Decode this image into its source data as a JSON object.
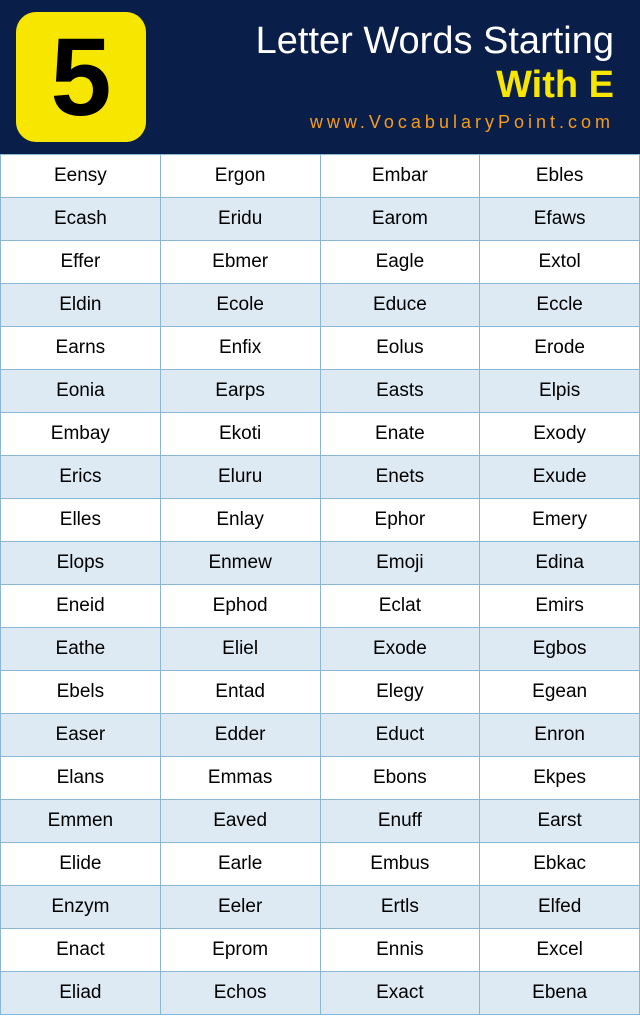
{
  "header": {
    "number": "5",
    "title_line1": "Letter Words Starting",
    "title_line2": "With E",
    "website": "www.VocabularyPoint.com"
  },
  "table": {
    "type": "table",
    "columns": 4,
    "background_color": "#ffffff",
    "alt_row_color": "#dde9f3",
    "border_color": "#8ab6d6",
    "cell_fontsize": 19,
    "rows": [
      [
        "Eensy",
        "Ergon",
        "Embar",
        "Ebles"
      ],
      [
        "Ecash",
        "Eridu",
        "Earom",
        "Efaws"
      ],
      [
        "Effer",
        "Ebmer",
        "Eagle",
        "Extol"
      ],
      [
        "Eldin",
        "Ecole",
        "Educe",
        "Eccle"
      ],
      [
        "Earns",
        "Enfix",
        "Eolus",
        "Erode"
      ],
      [
        "Eonia",
        "Earps",
        "Easts",
        "Elpis"
      ],
      [
        "Embay",
        "Ekoti",
        "Enate",
        "Exody"
      ],
      [
        "Erics",
        "Eluru",
        "Enets",
        "Exude"
      ],
      [
        "Elles",
        "Enlay",
        "Ephor",
        "Emery"
      ],
      [
        "Elops",
        "Enmew",
        "Emoji",
        "Edina"
      ],
      [
        "Eneid",
        "Ephod",
        "Eclat",
        "Emirs"
      ],
      [
        "Eathe",
        "Eliel",
        "Exode",
        "Egbos"
      ],
      [
        "Ebels",
        "Entad",
        "Elegy",
        "Egean"
      ],
      [
        "Easer",
        "Edder",
        "Educt",
        "Enron"
      ],
      [
        "Elans",
        "Emmas",
        "Ebons",
        "Ekpes"
      ],
      [
        "Emmen",
        "Eaved",
        "Enuff",
        "Earst"
      ],
      [
        "Elide",
        "Earle",
        "Embus",
        "Ebkac"
      ],
      [
        "Enzym",
        "Eeler",
        "Ertls",
        "Elfed"
      ],
      [
        "Enact",
        "Eprom",
        "Ennis",
        "Excel"
      ],
      [
        "Eliad",
        "Echos",
        "Exact",
        "Ebena"
      ]
    ]
  },
  "styling": {
    "header_bg": "#0a1e4a",
    "badge_bg": "#f7e600",
    "badge_text": "#000000",
    "title_color": "#ffffff",
    "subtitle_color": "#f7e600",
    "website_color": "#f59d1a"
  }
}
